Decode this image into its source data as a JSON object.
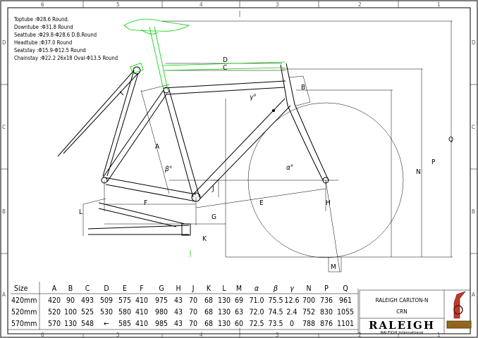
{
  "specs": [
    "Toptube  :Φ28.6  Round.",
    "Downtube :Φ31.8  Round",
    "Seattube :Φ29.8-Φ28.6  D.B.Round",
    "Headtube :Φ37.0  Round",
    "Seatstay :Φ15.9-Φ12.5   Round",
    "Chainstay :Φ22.2  26x18  Oval-Φ13.5  Round"
  ],
  "grid": {
    "columns": [
      "6",
      "5",
      "4",
      "3",
      "2",
      "1"
    ],
    "rows": [
      "D",
      "C",
      "B",
      "A"
    ]
  },
  "dimension_labels": {
    "A": "A",
    "B": "B",
    "C": "C",
    "D": "D",
    "E": "E",
    "F": "F",
    "G": "G",
    "H": "H",
    "J": "J",
    "K": "K",
    "L": "L",
    "M": "M",
    "N": "N",
    "P": "P",
    "Q": "Q",
    "alpha": "α°",
    "beta": "β°",
    "gamma": "γ°"
  },
  "table": {
    "headers": [
      "Size",
      "A",
      "B",
      "C",
      "D",
      "E",
      "F",
      "G",
      "H",
      "J",
      "K",
      "L",
      "M",
      "α",
      "β",
      "γ",
      "N",
      "P",
      "Q"
    ],
    "rows": [
      [
        "420mm",
        "420",
        "90",
        "493",
        "509",
        "575",
        "410",
        "975",
        "43",
        "70",
        "68",
        "130",
        "69",
        "71.0",
        "75.5",
        "12.6",
        "700",
        "736",
        "961"
      ],
      [
        "520mm",
        "520",
        "100",
        "525",
        "530",
        "580",
        "410",
        "980",
        "43",
        "70",
        "68",
        "130",
        "63",
        "72.0",
        "74.5",
        "2.4",
        "752",
        "830",
        "1055"
      ],
      [
        "570mm",
        "570",
        "130",
        "548",
        "←",
        "585",
        "410",
        "985",
        "43",
        "70",
        "68",
        "130",
        "60",
        "72.5",
        "73.5",
        "0",
        "788",
        "876",
        "1101"
      ]
    ]
  },
  "title_block": {
    "model": "RALEIGH CARLTON-N",
    "code": "CRN",
    "logo_text": "RALEIGH",
    "logo_subtext": "RALEIGH International",
    "badge_text": "RALEIGH"
  },
  "colors": {
    "line": "#000000",
    "component": "#00d000",
    "badge": "#c0392b"
  }
}
